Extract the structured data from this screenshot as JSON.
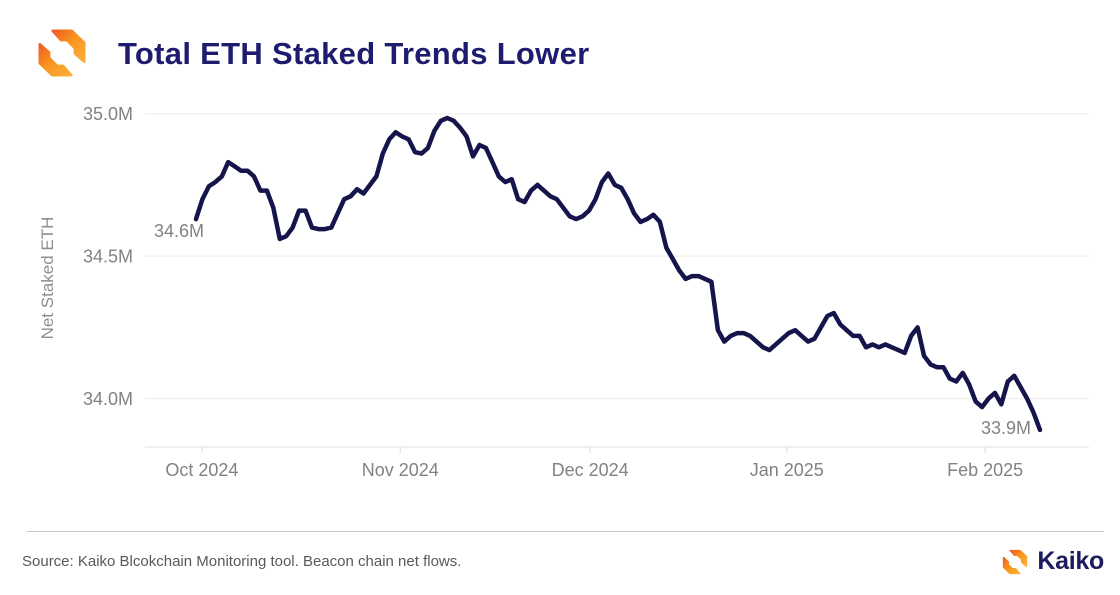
{
  "header": {
    "title": "Total ETH Staked Trends Lower"
  },
  "footer": {
    "source": "Source: Kaiko Blcokchain Monitoring tool. Beacon chain net flows.",
    "brand": "Kaiko"
  },
  "brand_colors": {
    "orange_light": "#FBB03B",
    "orange": "#F7941D",
    "orange_deep": "#F15A29",
    "navy": "#1b1b5e"
  },
  "chart_data": {
    "type": "line",
    "title": "Total ETH Staked Trends Lower",
    "xlabel": "",
    "ylabel": "Net Staked ETH",
    "x_period": {
      "start": "Oct 2024",
      "end": "Feb 2025",
      "interval": "daily"
    },
    "ylim": [
      33.83,
      35.02
    ],
    "grid": "horizontal",
    "legend": "none",
    "y_ticks": [
      {
        "label": "35.0M",
        "value": 35.0
      },
      {
        "label": "34.5M",
        "value": 34.5
      },
      {
        "label": "34.0M",
        "value": 34.0
      }
    ],
    "x_ticks": [
      {
        "label": "Oct 2024",
        "pos": 0.007
      },
      {
        "label": "Nov 2024",
        "pos": 0.242
      },
      {
        "label": "Dec 2024",
        "pos": 0.467
      },
      {
        "label": "Jan 2025",
        "pos": 0.7
      },
      {
        "label": "Feb 2025",
        "pos": 0.935
      }
    ],
    "series": [
      {
        "name": "Net Staked ETH (millions)",
        "color": "#16154b",
        "values": [
          34.63,
          34.7,
          34.745,
          34.76,
          34.78,
          34.83,
          34.815,
          34.8,
          34.8,
          34.78,
          34.73,
          34.73,
          34.67,
          34.56,
          34.57,
          34.6,
          34.66,
          34.66,
          34.6,
          34.595,
          34.595,
          34.6,
          34.65,
          34.7,
          34.71,
          34.735,
          34.72,
          34.75,
          34.78,
          34.86,
          34.91,
          34.935,
          34.92,
          34.91,
          34.865,
          34.86,
          34.88,
          34.94,
          34.975,
          34.985,
          34.975,
          34.95,
          34.92,
          34.85,
          34.89,
          34.88,
          34.83,
          34.78,
          34.76,
          34.77,
          34.7,
          34.69,
          34.73,
          34.75,
          34.73,
          34.71,
          34.7,
          34.67,
          34.64,
          34.63,
          34.64,
          34.66,
          34.7,
          34.76,
          34.79,
          34.75,
          34.74,
          34.7,
          34.65,
          34.62,
          34.63,
          34.645,
          34.62,
          34.53,
          34.49,
          34.45,
          34.42,
          34.43,
          34.43,
          34.42,
          34.41,
          34.24,
          34.2,
          34.22,
          34.23,
          34.23,
          34.22,
          34.2,
          34.18,
          34.17,
          34.19,
          34.21,
          34.23,
          34.24,
          34.22,
          34.2,
          34.21,
          34.25,
          34.29,
          34.3,
          34.26,
          34.24,
          34.22,
          34.22,
          34.18,
          34.19,
          34.18,
          34.19,
          34.18,
          34.17,
          34.16,
          34.22,
          34.25,
          34.15,
          34.12,
          34.11,
          34.11,
          34.07,
          34.06,
          34.09,
          34.05,
          33.99,
          33.97,
          34.0,
          34.02,
          33.98,
          34.06,
          34.08,
          34.04,
          34.0,
          33.95,
          33.89
        ]
      }
    ],
    "annotations": [
      {
        "label": "34.6M",
        "at": "first"
      },
      {
        "label": "33.9M",
        "at": "last"
      }
    ],
    "colors": {
      "line": "#16154b",
      "axis_text": "#828282",
      "grid": "#ededed",
      "axis_line": "#e2e2e2",
      "tick": "#d9d9d9"
    }
  }
}
